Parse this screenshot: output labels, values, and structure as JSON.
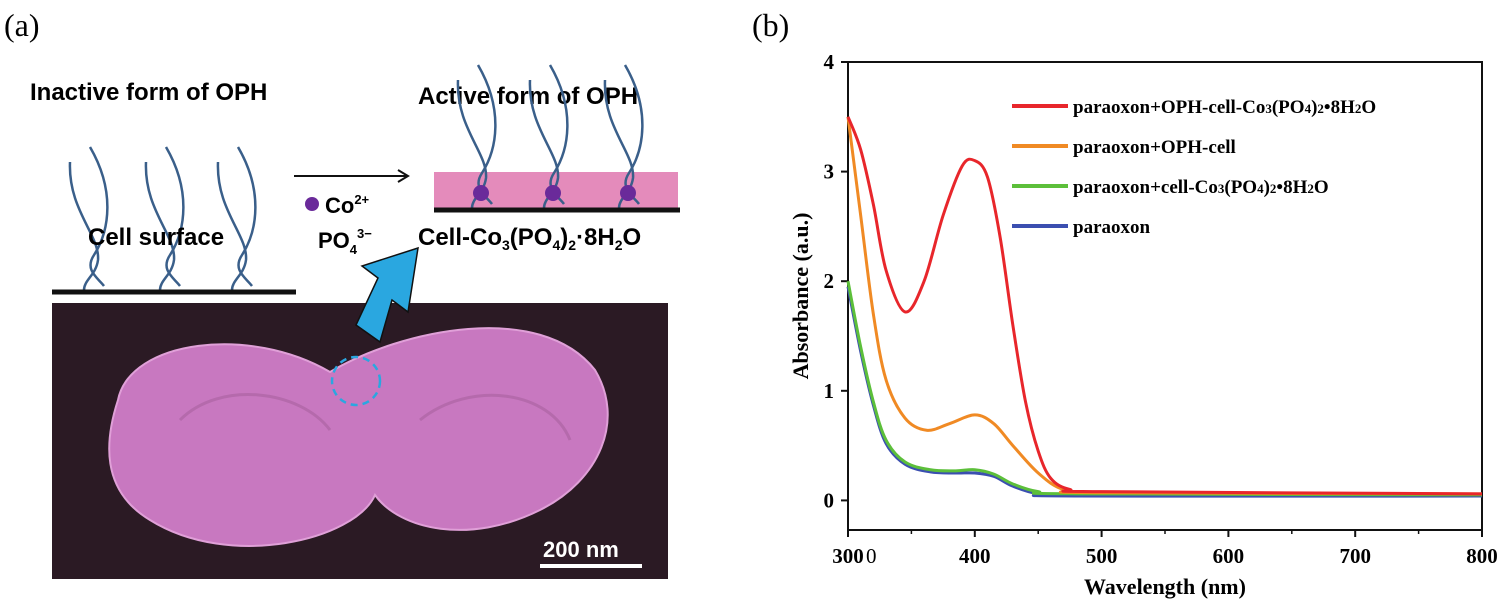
{
  "panel_a": {
    "label": "(a)",
    "inactive_title": "Inactive form of OPH",
    "active_title": "Active form of OPH",
    "cell_surface_label": "Cell surface",
    "reagent_top": "Co",
    "reagent_top_sup": "2+",
    "reagent_bottom": "PO",
    "reagent_bottom_sub": "4",
    "reagent_bottom_sup": "3−",
    "product_label_parts": [
      "Cell-Co",
      "3",
      "(PO",
      "4",
      ")",
      "2",
      "·8H",
      "2",
      "O"
    ],
    "scale_bar_label": "200 nm",
    "colors": {
      "strand": "#3a5f8a",
      "ion": "#6a2a9a",
      "layer": "#e48bbb",
      "arrow": "#2aa7e0",
      "sem_bg": "#2b1a24",
      "cell": "#c878c0"
    }
  },
  "panel_b": {
    "label": "(b)"
  },
  "chart_data": {
    "type": "line",
    "xlabel": "Wavelength (nm)",
    "ylabel": "Absorbance (a.u.)",
    "xlim": [
      300,
      800
    ],
    "ylim": [
      -0.27,
      4
    ],
    "xticks": [
      300,
      400,
      500,
      600,
      700,
      800
    ],
    "xtick_labels": [
      "300",
      "400",
      "500",
      "600",
      "700",
      "800"
    ],
    "yticks": [
      0,
      1,
      2,
      3,
      4
    ],
    "ytick_labels": [
      "0",
      "1",
      "2",
      "3",
      "4"
    ],
    "stray_tick_glyph": "0",
    "grid": false,
    "legend_position": "top-right",
    "series": [
      {
        "name": "paraoxon+OPH-cell-Co3(PO4)2•8H2O",
        "color": "#e8262b",
        "x": [
          300,
          310,
          320,
          330,
          345,
          360,
          375,
          390,
          400,
          410,
          420,
          430,
          440,
          450,
          460,
          475,
          500,
          800
        ],
        "y": [
          3.5,
          3.2,
          2.7,
          2.1,
          1.72,
          2.0,
          2.6,
          3.05,
          3.1,
          2.95,
          2.4,
          1.6,
          0.9,
          0.45,
          0.2,
          0.1,
          0.08,
          0.06
        ]
      },
      {
        "name": "paraoxon+OPH-cell",
        "color": "#f08a24",
        "x": [
          300,
          310,
          320,
          330,
          345,
          362,
          380,
          400,
          415,
          430,
          450,
          470,
          500,
          800
        ],
        "y": [
          3.5,
          2.6,
          1.7,
          1.1,
          0.75,
          0.64,
          0.7,
          0.78,
          0.7,
          0.5,
          0.25,
          0.1,
          0.07,
          0.06
        ]
      },
      {
        "name": "paraoxon+cell-Co3(PO4)2•8H2O",
        "color": "#5cbf3a",
        "x": [
          300,
          310,
          320,
          330,
          345,
          365,
          385,
          400,
          415,
          430,
          450,
          480,
          800
        ],
        "y": [
          2.0,
          1.4,
          0.9,
          0.55,
          0.35,
          0.28,
          0.27,
          0.28,
          0.24,
          0.15,
          0.08,
          0.06,
          0.05
        ]
      },
      {
        "name": "paraoxon",
        "color": "#3b4fb0",
        "x": [
          300,
          310,
          320,
          330,
          345,
          365,
          385,
          400,
          415,
          430,
          450,
          480,
          800
        ],
        "y": [
          1.95,
          1.36,
          0.87,
          0.52,
          0.33,
          0.26,
          0.25,
          0.25,
          0.22,
          0.13,
          0.06,
          0.04,
          0.04
        ]
      }
    ]
  }
}
